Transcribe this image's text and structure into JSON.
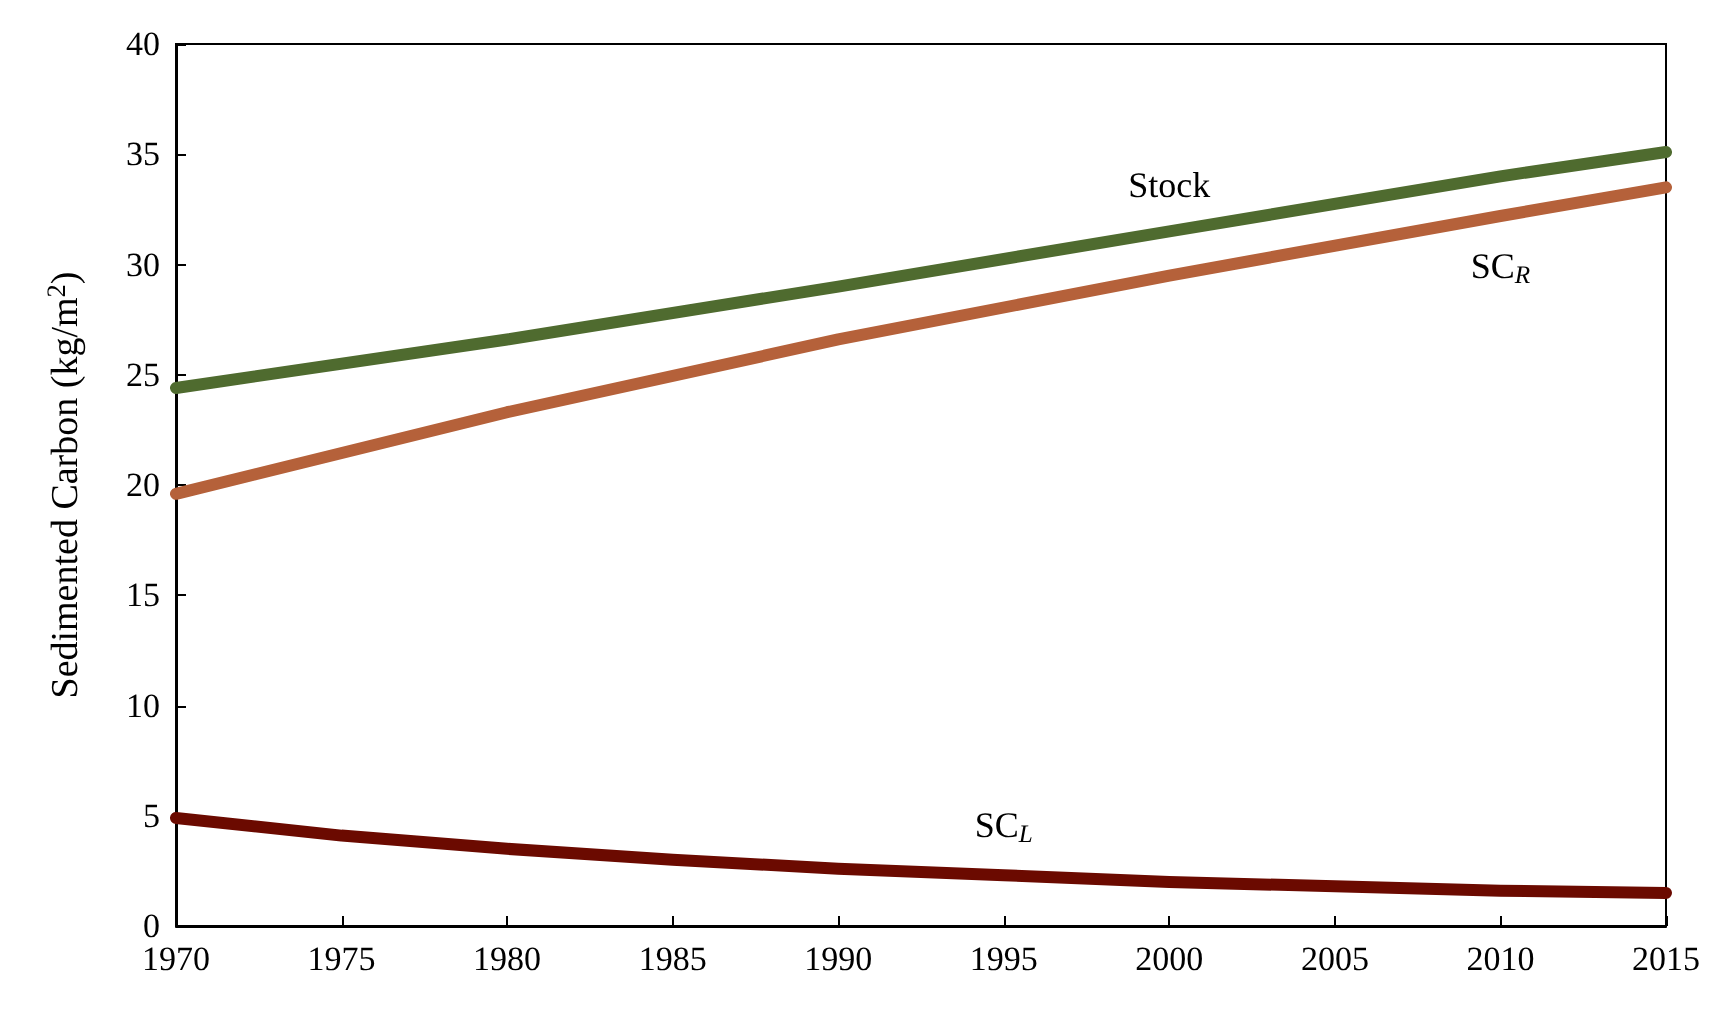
{
  "chart_data": {
    "type": "line",
    "ylabel": "Sedimented Carbon (kg/m$^{2}$)",
    "xlim": [
      1970,
      2015
    ],
    "xticks": [
      1970,
      1975,
      1980,
      1985,
      1990,
      1995,
      2000,
      2005,
      2010,
      2015
    ],
    "ylim": [
      0,
      40
    ],
    "yticks": [
      0,
      5,
      10,
      15,
      20,
      25,
      30,
      35,
      40
    ],
    "grid": false,
    "marker": "none",
    "line_style": "solid",
    "series": [
      {
        "name": "Stock",
        "color": "#4f6b2f",
        "x": [
          1970,
          1980,
          1990,
          2000,
          2010,
          2015
        ],
        "values": [
          24.4,
          26.6,
          29.0,
          31.5,
          34.0,
          35.1
        ]
      },
      {
        "name": "SC$_{R}$",
        "color": "#b5613a",
        "x": [
          1970,
          1980,
          1990,
          2000,
          2010,
          2015
        ],
        "values": [
          19.6,
          23.3,
          26.6,
          29.5,
          32.2,
          33.5
        ]
      },
      {
        "name": "SC$_{L}$",
        "color": "#6b0a00",
        "x": [
          1970,
          1975,
          1980,
          1985,
          1990,
          1995,
          2000,
          2005,
          2010,
          2015
        ],
        "values": [
          4.9,
          4.1,
          3.5,
          3.0,
          2.6,
          2.3,
          2.0,
          1.8,
          1.6,
          1.5
        ]
      }
    ]
  }
}
